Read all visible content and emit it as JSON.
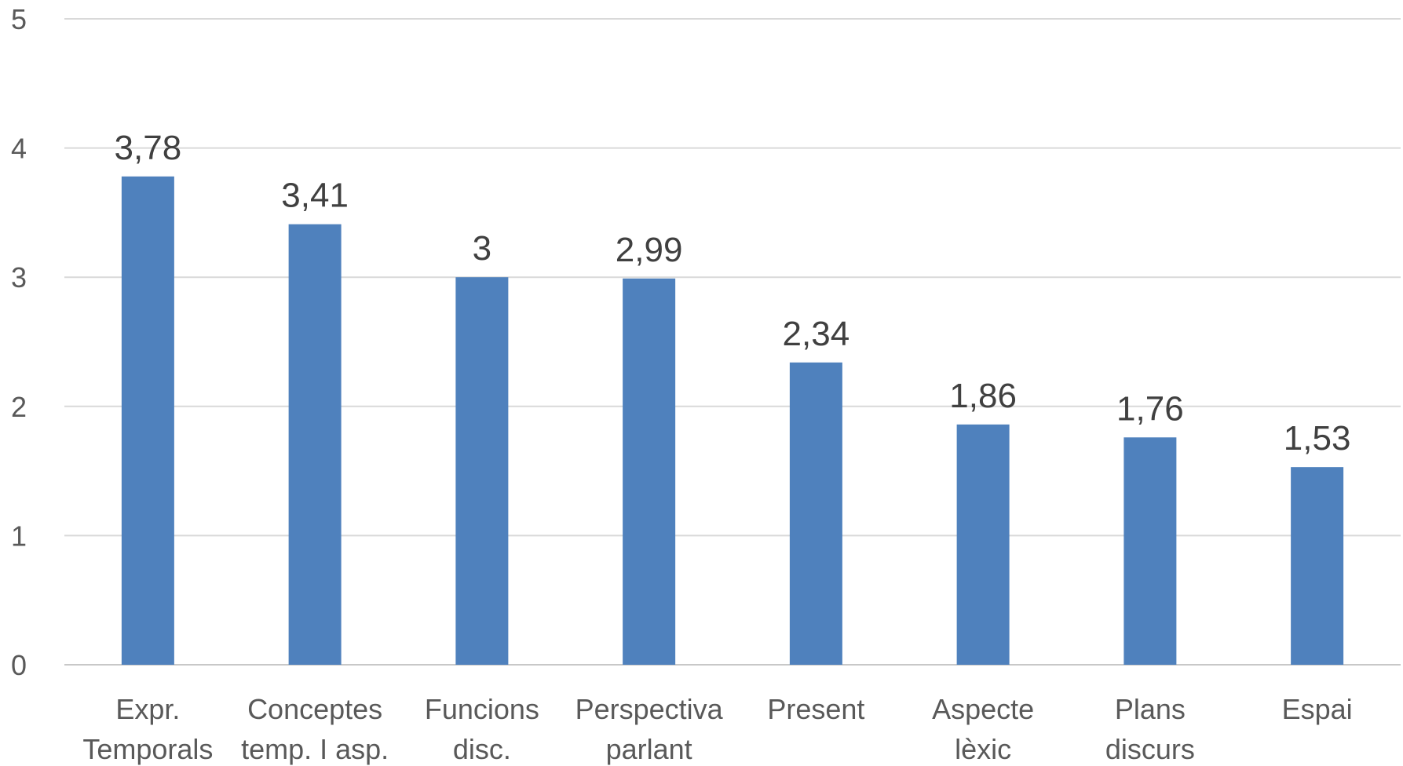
{
  "chart_data": {
    "type": "bar",
    "title": "",
    "xlabel": "",
    "ylabel": "",
    "categories": [
      [
        "Expr.",
        "Temporals"
      ],
      [
        "Conceptes",
        "temp. I asp."
      ],
      [
        "Funcions",
        "disc."
      ],
      [
        "Perspectiva",
        "parlant"
      ],
      [
        "Present"
      ],
      [
        "Aspecte",
        "lèxic"
      ],
      [
        "Plans",
        "discurs"
      ],
      [
        "Espai"
      ]
    ],
    "values": [
      3.78,
      3.41,
      3,
      2.99,
      2.34,
      1.86,
      1.76,
      1.53
    ],
    "data_labels": [
      "3,78",
      "3,41",
      "3",
      "2,99",
      "2,34",
      "1,86",
      "1,76",
      "1,53"
    ],
    "ylim": [
      0,
      5
    ],
    "yticks": [
      0,
      1,
      2,
      3,
      4,
      5
    ],
    "grid": true,
    "legend": "none",
    "colors": {
      "bar": "#4f81bd"
    }
  }
}
